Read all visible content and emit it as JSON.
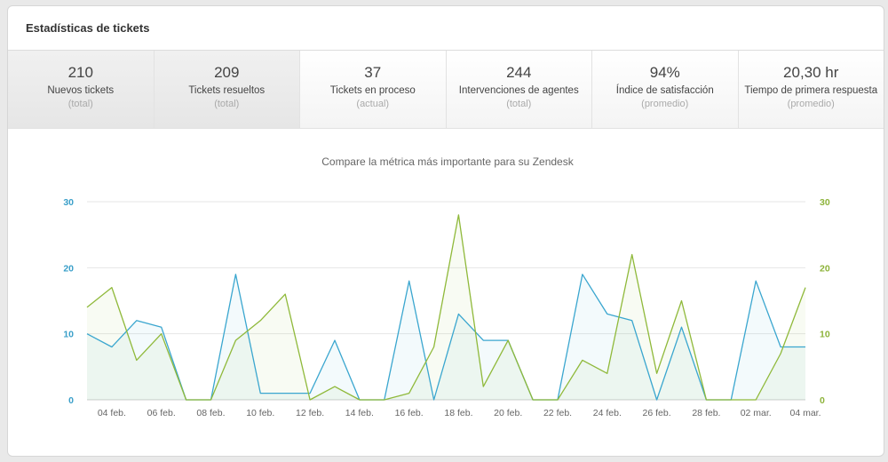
{
  "header": {
    "title": "Estadísticas de tickets"
  },
  "stats": [
    {
      "value": "210",
      "label": "Nuevos tickets",
      "sub": "(total)"
    },
    {
      "value": "209",
      "label": "Tickets resueltos",
      "sub": "(total)"
    },
    {
      "value": "37",
      "label": "Tickets en proceso",
      "sub": "(actual)"
    },
    {
      "value": "244",
      "label": "Intervenciones de agentes",
      "sub": "(total)"
    },
    {
      "value": "94%",
      "label": "Índice de satisfacción",
      "sub": "(promedio)"
    },
    {
      "value": "20,30 hr",
      "label": "Tiempo de primera respuesta",
      "sub": "(promedio)"
    }
  ],
  "colors": {
    "blue": "#3aa6cf",
    "green": "#8fb93a"
  },
  "chart_data": {
    "type": "area",
    "title": "Compare la métrica más importante para su Zendesk",
    "x": [
      "03 feb.",
      "04 feb.",
      "05 feb.",
      "06 feb.",
      "07 feb.",
      "08 feb.",
      "09 feb.",
      "10 feb.",
      "11 feb.",
      "12 feb.",
      "13 feb.",
      "14 feb.",
      "15 feb.",
      "16 feb.",
      "17 feb.",
      "18 feb.",
      "19 feb.",
      "20 feb.",
      "21 feb.",
      "22 feb.",
      "23 feb.",
      "24 feb.",
      "25 feb.",
      "26 feb.",
      "27 feb.",
      "28 feb.",
      "01 mar.",
      "02 mar.",
      "03 mar.",
      "04 mar."
    ],
    "xticks": [
      "04 feb.",
      "06 feb.",
      "08 feb.",
      "10 feb.",
      "12 feb.",
      "14 feb.",
      "16 feb.",
      "18 feb.",
      "20 feb.",
      "22 feb.",
      "24 feb.",
      "26 feb.",
      "28 feb.",
      "02 mar.",
      "04 mar."
    ],
    "series": [
      {
        "axis": "left",
        "values": [
          10,
          8,
          12,
          11,
          0,
          0,
          19,
          1,
          1,
          1,
          9,
          0,
          0,
          18,
          0,
          13,
          9,
          9,
          0,
          0,
          19,
          13,
          12,
          0,
          11,
          0,
          0,
          18,
          8,
          8
        ]
      },
      {
        "axis": "right",
        "values": [
          14,
          17,
          6,
          10,
          0,
          0,
          9,
          12,
          16,
          0,
          2,
          0,
          0,
          1,
          8,
          28,
          2,
          9,
          0,
          0,
          6,
          4,
          22,
          4,
          15,
          0,
          0,
          0,
          7,
          17
        ]
      }
    ],
    "ylim": [
      0,
      30
    ],
    "yticks": [
      0,
      10,
      20,
      30
    ],
    "grid": true
  }
}
